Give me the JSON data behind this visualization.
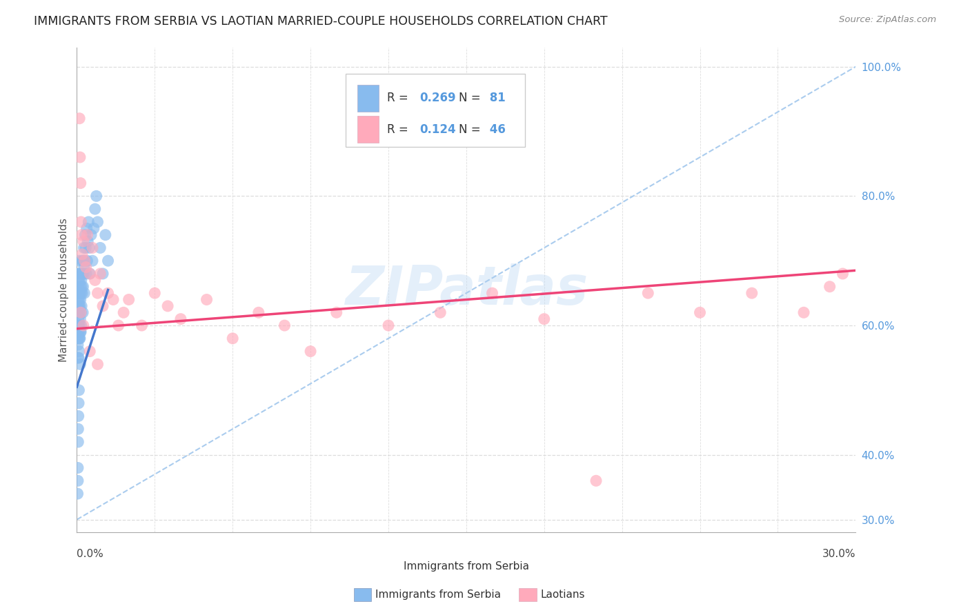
{
  "title": "IMMIGRANTS FROM SERBIA VS LAOTIAN MARRIED-COUPLE HOUSEHOLDS CORRELATION CHART",
  "source": "Source: ZipAtlas.com",
  "ylabel": "Married-couple Households",
  "right_yticks": [
    100.0,
    80.0,
    60.0,
    40.0,
    30.0
  ],
  "serbia_color": "#88bbee",
  "laotian_color": "#ffaabb",
  "serbia_trend_color": "#4477cc",
  "laotian_trend_color": "#ee4477",
  "dashed_color": "#aaccee",
  "serbia_x": [
    0.0002,
    0.0003,
    0.0003,
    0.0004,
    0.0004,
    0.0004,
    0.0005,
    0.0005,
    0.0005,
    0.0006,
    0.0006,
    0.0006,
    0.0006,
    0.0007,
    0.0007,
    0.0007,
    0.0007,
    0.0008,
    0.0008,
    0.0008,
    0.0009,
    0.0009,
    0.0009,
    0.001,
    0.001,
    0.001,
    0.0011,
    0.0011,
    0.0012,
    0.0012,
    0.0013,
    0.0013,
    0.0014,
    0.0014,
    0.0015,
    0.0015,
    0.0016,
    0.0016,
    0.0017,
    0.0017,
    0.0018,
    0.0019,
    0.002,
    0.0021,
    0.0022,
    0.0023,
    0.0024,
    0.0025,
    0.0026,
    0.0027,
    0.0028,
    0.0029,
    0.003,
    0.0032,
    0.0034,
    0.0036,
    0.0038,
    0.004,
    0.0042,
    0.0045,
    0.0048,
    0.005,
    0.0055,
    0.006,
    0.0065,
    0.007,
    0.0075,
    0.008,
    0.009,
    0.01,
    0.011,
    0.012,
    0.0013,
    0.0008,
    0.0007,
    0.0006,
    0.0005,
    0.0005,
    0.0004,
    0.0004,
    0.0003
  ],
  "serbia_y": [
    0.62,
    0.58,
    0.65,
    0.63,
    0.57,
    0.68,
    0.64,
    0.6,
    0.55,
    0.66,
    0.61,
    0.67,
    0.59,
    0.7,
    0.65,
    0.6,
    0.55,
    0.68,
    0.63,
    0.58,
    0.64,
    0.59,
    0.56,
    0.67,
    0.62,
    0.58,
    0.65,
    0.6,
    0.63,
    0.58,
    0.66,
    0.61,
    0.64,
    0.59,
    0.68,
    0.59,
    0.62,
    0.65,
    0.6,
    0.67,
    0.63,
    0.66,
    0.7,
    0.65,
    0.68,
    0.62,
    0.66,
    0.7,
    0.68,
    0.72,
    0.69,
    0.65,
    0.7,
    0.74,
    0.72,
    0.68,
    0.75,
    0.7,
    0.73,
    0.76,
    0.72,
    0.68,
    0.74,
    0.7,
    0.75,
    0.78,
    0.8,
    0.76,
    0.72,
    0.68,
    0.74,
    0.7,
    0.54,
    0.5,
    0.48,
    0.46,
    0.44,
    0.42,
    0.38,
    0.36,
    0.34
  ],
  "laotian_x": [
    0.001,
    0.0012,
    0.0014,
    0.0016,
    0.0018,
    0.002,
    0.0025,
    0.003,
    0.0035,
    0.004,
    0.005,
    0.006,
    0.007,
    0.008,
    0.009,
    0.01,
    0.012,
    0.014,
    0.016,
    0.018,
    0.02,
    0.025,
    0.03,
    0.035,
    0.04,
    0.05,
    0.06,
    0.07,
    0.08,
    0.09,
    0.1,
    0.12,
    0.14,
    0.16,
    0.18,
    0.2,
    0.22,
    0.24,
    0.26,
    0.28,
    0.29,
    0.295,
    0.0015,
    0.0025,
    0.005,
    0.008
  ],
  "laotian_y": [
    0.92,
    0.86,
    0.82,
    0.76,
    0.74,
    0.71,
    0.73,
    0.7,
    0.69,
    0.74,
    0.68,
    0.72,
    0.67,
    0.65,
    0.68,
    0.63,
    0.65,
    0.64,
    0.6,
    0.62,
    0.64,
    0.6,
    0.65,
    0.63,
    0.61,
    0.64,
    0.58,
    0.62,
    0.6,
    0.56,
    0.62,
    0.6,
    0.62,
    0.65,
    0.61,
    0.36,
    0.65,
    0.62,
    0.65,
    0.62,
    0.66,
    0.68,
    0.62,
    0.6,
    0.56,
    0.54
  ],
  "serbia_trend_x": [
    0.0,
    0.012
  ],
  "serbia_trend_y": [
    0.505,
    0.655
  ],
  "laotian_trend_x": [
    0.0,
    0.3
  ],
  "laotian_trend_y": [
    0.595,
    0.685
  ],
  "ref_line_x": [
    0.0,
    0.3
  ],
  "ref_line_y": [
    0.3,
    1.0
  ],
  "xlim": [
    0.0,
    0.3
  ],
  "ylim": [
    0.28,
    1.03
  ]
}
